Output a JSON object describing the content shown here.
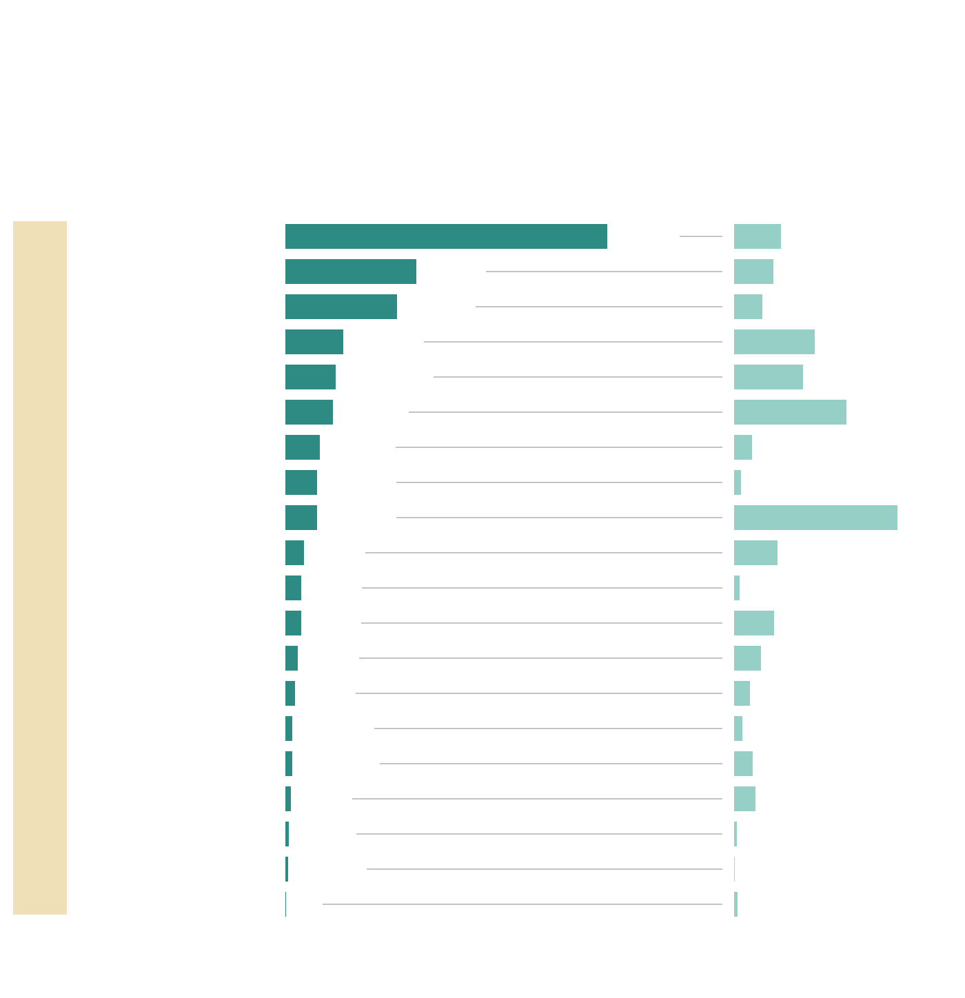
{
  "chart_data": {
    "type": "bar",
    "categories": [
      null,
      null,
      null,
      null,
      null,
      null,
      null,
      null,
      null,
      null,
      null,
      null,
      null,
      null,
      null,
      null,
      null,
      null,
      null,
      null
    ],
    "series": [
      {
        "color": "#2e8b84",
        "values": [
          467,
          190,
          162,
          84,
          73,
          69,
          50,
          46,
          46,
          27,
          23,
          23,
          18,
          14,
          10,
          10,
          8,
          5,
          4,
          1
        ]
      },
      {
        "color": "#96cfc6",
        "values": [
          68,
          57,
          41,
          117,
          100,
          163,
          26,
          10,
          237,
          63,
          8,
          58,
          39,
          23,
          12,
          27,
          31,
          4,
          0,
          5
        ]
      }
    ]
  }
}
